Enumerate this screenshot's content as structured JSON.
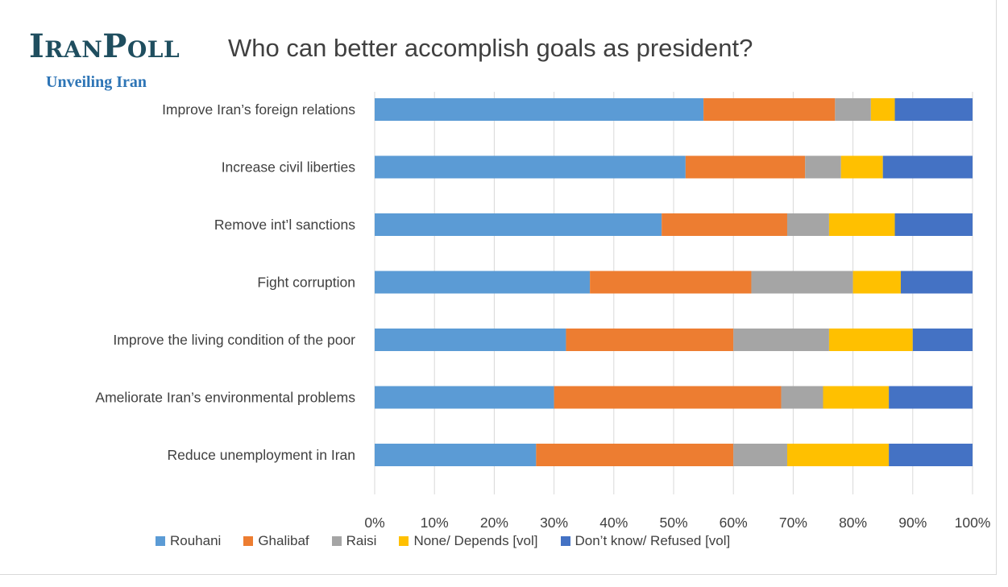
{
  "header": {
    "logo_text": "IranPoll",
    "logo_tagline": "Unveiling Iran"
  },
  "chart_data": {
    "type": "bar",
    "orientation": "horizontal",
    "stacked": "percent",
    "title": "Who can better accomplish goals as president?",
    "categories": [
      "Improve Iran’s foreign relations",
      "Increase civil liberties",
      "Remove int’l sanctions",
      "Fight corruption",
      "Improve the living condition of the poor",
      "Ameliorate Iran’s environmental problems",
      "Reduce unemployment in Iran"
    ],
    "series": [
      {
        "name": "Rouhani",
        "color": "#5b9bd5",
        "values": [
          55,
          52,
          48,
          36,
          32,
          30,
          27
        ]
      },
      {
        "name": "Ghalibaf",
        "color": "#ed7d31",
        "values": [
          22,
          20,
          21,
          27,
          28,
          38,
          33
        ]
      },
      {
        "name": "Raisi",
        "color": "#a5a5a5",
        "values": [
          6,
          6,
          7,
          17,
          16,
          7,
          9
        ]
      },
      {
        "name": "None/ Depends [vol]",
        "color": "#ffc000",
        "values": [
          4,
          7,
          11,
          8,
          14,
          11,
          17
        ]
      },
      {
        "name": "Don’t know/ Refused [vol]",
        "color": "#4472c4",
        "values": [
          13,
          15,
          13,
          12,
          10,
          14,
          14
        ]
      }
    ],
    "xlim": [
      0,
      100
    ],
    "x_ticks": [
      "0%",
      "10%",
      "20%",
      "30%",
      "40%",
      "50%",
      "60%",
      "70%",
      "80%",
      "90%",
      "100%"
    ],
    "grid": true,
    "legend_position": "bottom"
  }
}
